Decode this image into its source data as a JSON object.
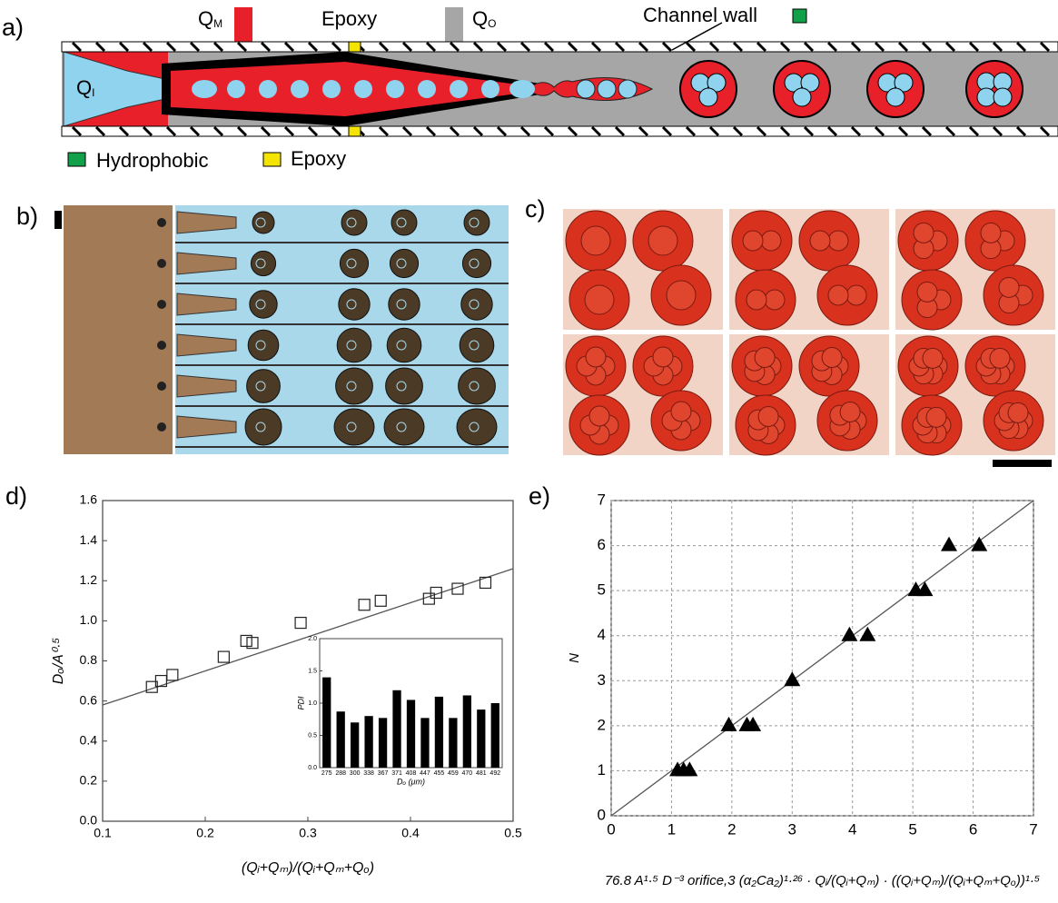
{
  "panel_labels": [
    "a)",
    "b)",
    "c)",
    "d)",
    "e)"
  ],
  "schematic": {
    "q_m": {
      "main": "Q",
      "sub": "M"
    },
    "epoxy_label": "Epoxy",
    "q_o": {
      "main": "Q",
      "sub": "O"
    },
    "channel_wall": "Channel wall",
    "q_i": {
      "main": "Q",
      "sub": "I"
    },
    "legend": [
      "Hydrophobic",
      "Epoxy"
    ]
  },
  "chart_data": [
    {
      "type": "scatter",
      "x_label": "(Qᵢ+Qₘ)/(Qᵢ+Qₘ+Qₒ)",
      "y_label": "Dₒ/A⁰·⁵",
      "x": [
        0.148,
        0.157,
        0.168,
        0.218,
        0.24,
        0.246,
        0.293,
        0.355,
        0.371,
        0.418,
        0.425,
        0.446,
        0.473
      ],
      "values": [
        0.67,
        0.7,
        0.73,
        0.82,
        0.9,
        0.89,
        0.99,
        1.08,
        1.1,
        1.11,
        1.14,
        1.16,
        1.19
      ],
      "fit_x": [
        0.1,
        0.5
      ],
      "fit_values": [
        0.58,
        1.26
      ],
      "marker": "open-square",
      "color": "#222222",
      "xlim": [
        0.1,
        0.5
      ],
      "xticks": [
        0.1,
        0.2,
        0.3,
        0.4,
        0.5
      ],
      "ylim": [
        0,
        1.6
      ],
      "yticks": [
        {
          "value": 0,
          "label": "0.0"
        },
        0.2,
        0.4,
        0.6,
        0.8,
        {
          "value": 1,
          "label": "1.0"
        },
        1.2,
        1.4,
        1.6
      ]
    },
    {
      "type": "bar",
      "x_label": "Dₒ (μm)",
      "y_label": "PDI",
      "categories": [
        "275",
        "288",
        "300",
        "338",
        "367",
        "371",
        "408",
        "447",
        "455",
        "459",
        "470",
        "481",
        "492"
      ],
      "values": [
        1.4,
        0.87,
        0.7,
        0.8,
        0.77,
        1.2,
        1.05,
        0.77,
        1.1,
        0.77,
        1.12,
        0.9,
        1.0
      ],
      "color": "#000000",
      "ylim": [
        0,
        2
      ],
      "yticks": [
        {
          "value": 0,
          "label": "0.0"
        },
        0.5,
        {
          "value": 1,
          "label": "1.0"
        },
        1.5,
        {
          "value": 2,
          "label": "2.0"
        }
      ]
    },
    {
      "type": "scatter",
      "x_label": "76.8 A¹·⁵ D⁻³ orifice,3 (α₂Ca₂)¹·²⁶ · Qᵢ/(Qᵢ+Qₘ) · ((Qᵢ+Qₘ)/(Qᵢ+Qₘ+Qₒ))¹·⁵",
      "y_label": "N",
      "x": [
        1.1,
        1.2,
        1.3,
        1.95,
        2.25,
        2.35,
        3.0,
        3.95,
        4.25,
        5.05,
        5.2,
        5.6,
        6.1
      ],
      "values": [
        1,
        1,
        1,
        2,
        2,
        2,
        3,
        4,
        4,
        5,
        5,
        6,
        6
      ],
      "fit_x": [
        0,
        7
      ],
      "fit_values": [
        0,
        7
      ],
      "marker": "filled-triangle",
      "color": "#000000",
      "grid": true,
      "xlim": [
        0,
        7
      ],
      "xticks": [
        0,
        1,
        2,
        3,
        4,
        5,
        6,
        7
      ],
      "ylim": [
        0,
        7
      ],
      "yticks": [
        0,
        1,
        2,
        3,
        4,
        5,
        6,
        7
      ]
    }
  ]
}
